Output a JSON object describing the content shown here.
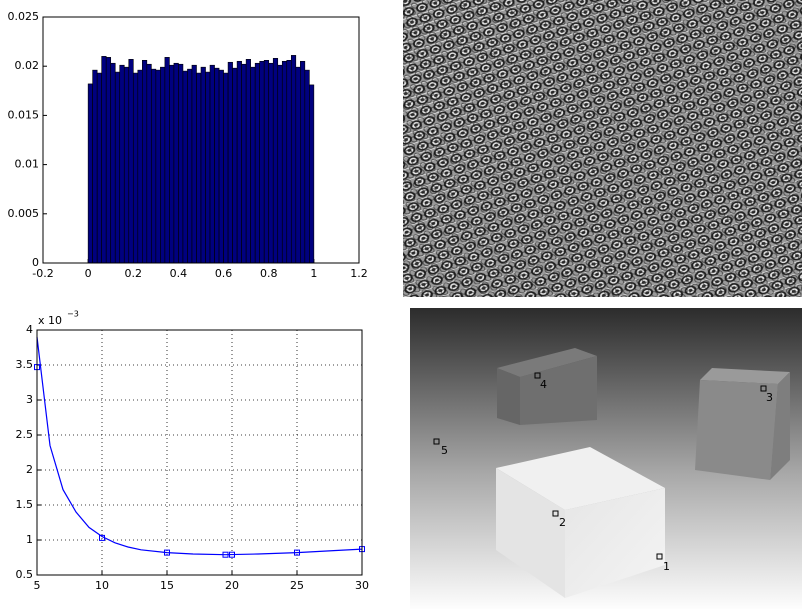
{
  "chart_data": [
    {
      "type": "histogram",
      "color": "#00007f",
      "bins": [
        0,
        0.02,
        0.04,
        0.06,
        0.08,
        0.1,
        0.12,
        0.14,
        0.16,
        0.18,
        0.2,
        0.22,
        0.24,
        0.26,
        0.28,
        0.3,
        0.32,
        0.34,
        0.36,
        0.38,
        0.4,
        0.42,
        0.44,
        0.46,
        0.48,
        0.5,
        0.52,
        0.54,
        0.56,
        0.58,
        0.6,
        0.62,
        0.64,
        0.66,
        0.68,
        0.7,
        0.72,
        0.74,
        0.76,
        0.78,
        0.8,
        0.82,
        0.84,
        0.86,
        0.88,
        0.9,
        0.92,
        0.94,
        0.96,
        0.98,
        1
      ],
      "values": [
        0.0182,
        0.0196,
        0.0193,
        0.021,
        0.0209,
        0.0203,
        0.0194,
        0.0201,
        0.0199,
        0.0207,
        0.0193,
        0.0196,
        0.0206,
        0.0202,
        0.0197,
        0.0196,
        0.0199,
        0.0209,
        0.0201,
        0.0203,
        0.0202,
        0.0195,
        0.0197,
        0.0201,
        0.0193,
        0.0199,
        0.0194,
        0.0201,
        0.0198,
        0.0196,
        0.0193,
        0.0204,
        0.0198,
        0.0205,
        0.0202,
        0.0207,
        0.0199,
        0.0203,
        0.0205,
        0.0206,
        0.0203,
        0.0208,
        0.0201,
        0.0205,
        0.0206,
        0.0211,
        0.0199,
        0.0205,
        0.0196,
        0.0181
      ],
      "xlim": [
        -0.2,
        1.2
      ],
      "xticks": [
        -0.2,
        0,
        0.2,
        0.4,
        0.6,
        0.8,
        1,
        1.2
      ],
      "ylim": [
        0,
        0.025
      ],
      "yticks": [
        0,
        0.005,
        0.01,
        0.015,
        0.02,
        0.025
      ]
    },
    {
      "type": "line",
      "grid": true,
      "y_multiplier": {
        "base": "x 10",
        "exponent": "−3"
      },
      "xlim": [
        5,
        30
      ],
      "xticks": [
        5,
        10,
        15,
        20,
        25,
        30
      ],
      "ylim": [
        0.5,
        4
      ],
      "yticks": [
        0.5,
        1,
        1.5,
        2,
        2.5,
        3,
        3.5,
        4
      ],
      "series": [
        {
          "color": "#0000ff",
          "marker": "none",
          "x": [
            5,
            6,
            7,
            8,
            9,
            10,
            11,
            12,
            13,
            15,
            17,
            19.5,
            22,
            25,
            28,
            30
          ],
          "values": [
            3.9,
            2.35,
            1.72,
            1.4,
            1.18,
            1.05,
            0.96,
            0.9,
            0.86,
            0.82,
            0.8,
            0.79,
            0.8,
            0.82,
            0.85,
            0.87
          ]
        },
        {
          "color": "#0000ff",
          "marker": "square",
          "x": [
            5,
            10,
            15,
            19.5,
            20,
            25,
            30
          ],
          "values": [
            3.47,
            1.03,
            0.82,
            0.79,
            0.79,
            0.82,
            0.87
          ]
        }
      ]
    }
  ],
  "depth_image": {
    "points": [
      {
        "label": "1"
      },
      {
        "label": "2"
      },
      {
        "label": "3"
      },
      {
        "label": "4"
      },
      {
        "label": "5"
      }
    ]
  }
}
